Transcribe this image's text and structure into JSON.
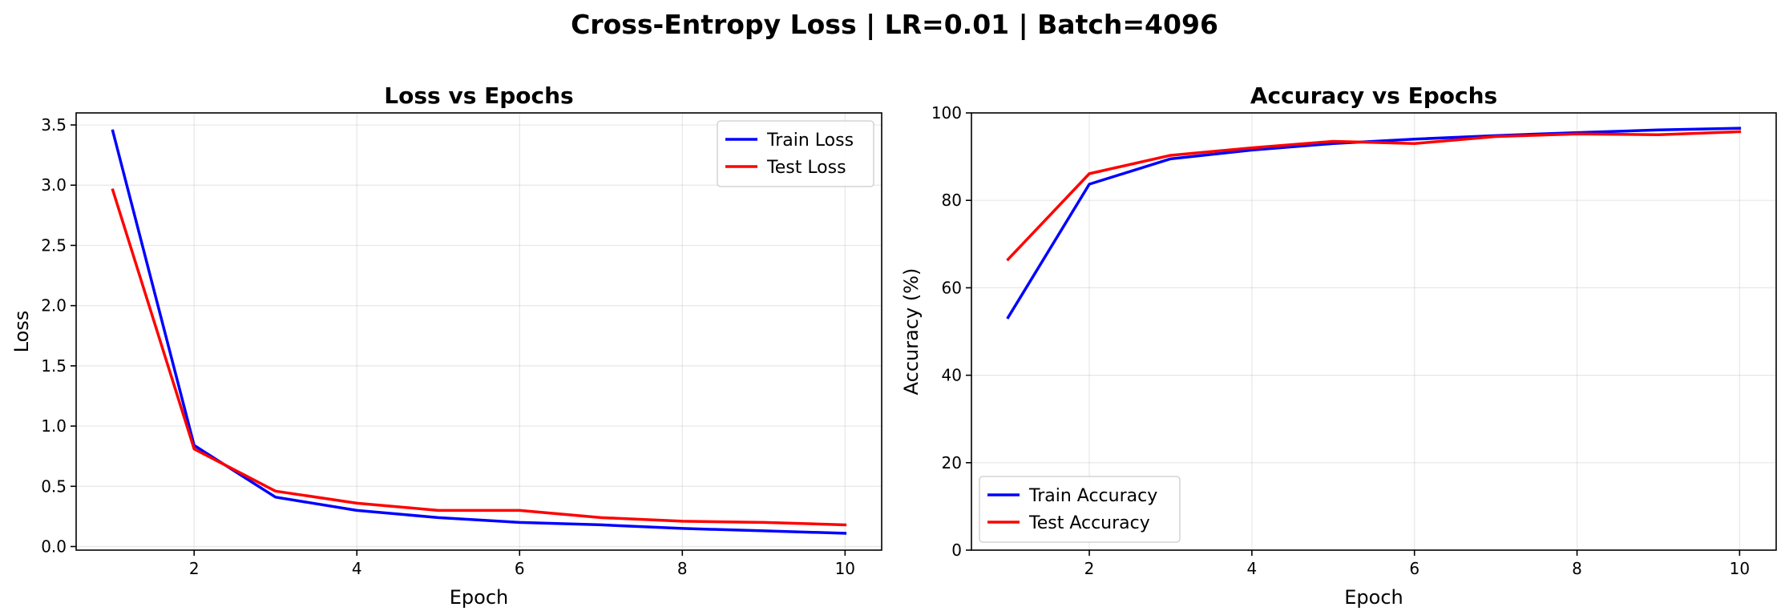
{
  "figure": {
    "title": "Cross-Entropy Loss | LR=0.01 | Batch=4096"
  },
  "chart_data": [
    {
      "type": "line",
      "title": "Loss vs Epochs",
      "xlabel": "Epoch",
      "ylabel": "Loss",
      "x": [
        1,
        2,
        3,
        4,
        5,
        6,
        7,
        8,
        9,
        10
      ],
      "xlim": [
        0.55,
        10.45
      ],
      "ylim": [
        -0.03,
        3.6
      ],
      "xticks": [
        2,
        4,
        6,
        8,
        10
      ],
      "yticks": [
        0.0,
        0.5,
        1.0,
        1.5,
        2.0,
        2.5,
        3.0,
        3.5
      ],
      "ytick_decimals": 1,
      "grid": true,
      "legend_position": "top-right",
      "series": [
        {
          "name": "Train Loss",
          "color": "#0000ff",
          "values": [
            3.45,
            0.84,
            0.41,
            0.3,
            0.24,
            0.2,
            0.18,
            0.15,
            0.13,
            0.11
          ]
        },
        {
          "name": "Test Loss",
          "color": "#ff0000",
          "values": [
            2.96,
            0.81,
            0.46,
            0.36,
            0.3,
            0.3,
            0.24,
            0.21,
            0.2,
            0.18
          ]
        }
      ]
    },
    {
      "type": "line",
      "title": "Accuracy vs Epochs",
      "xlabel": "Epoch",
      "ylabel": "Accuracy (%)",
      "x": [
        1,
        2,
        3,
        4,
        5,
        6,
        7,
        8,
        9,
        10
      ],
      "xlim": [
        0.55,
        10.45
      ],
      "ylim": [
        0,
        100
      ],
      "xticks": [
        2,
        4,
        6,
        8,
        10
      ],
      "yticks": [
        0,
        20,
        40,
        60,
        80,
        100
      ],
      "ytick_decimals": 0,
      "grid": true,
      "legend_position": "bottom-left",
      "series": [
        {
          "name": "Train Accuracy",
          "color": "#0000ff",
          "values": [
            53.2,
            83.7,
            89.5,
            91.5,
            93.0,
            94.0,
            94.8,
            95.5,
            96.1,
            96.5
          ]
        },
        {
          "name": "Test Accuracy",
          "color": "#ff0000",
          "values": [
            66.5,
            86.1,
            90.3,
            92.0,
            93.5,
            93.0,
            94.6,
            95.2,
            95.0,
            95.7
          ]
        }
      ]
    }
  ]
}
